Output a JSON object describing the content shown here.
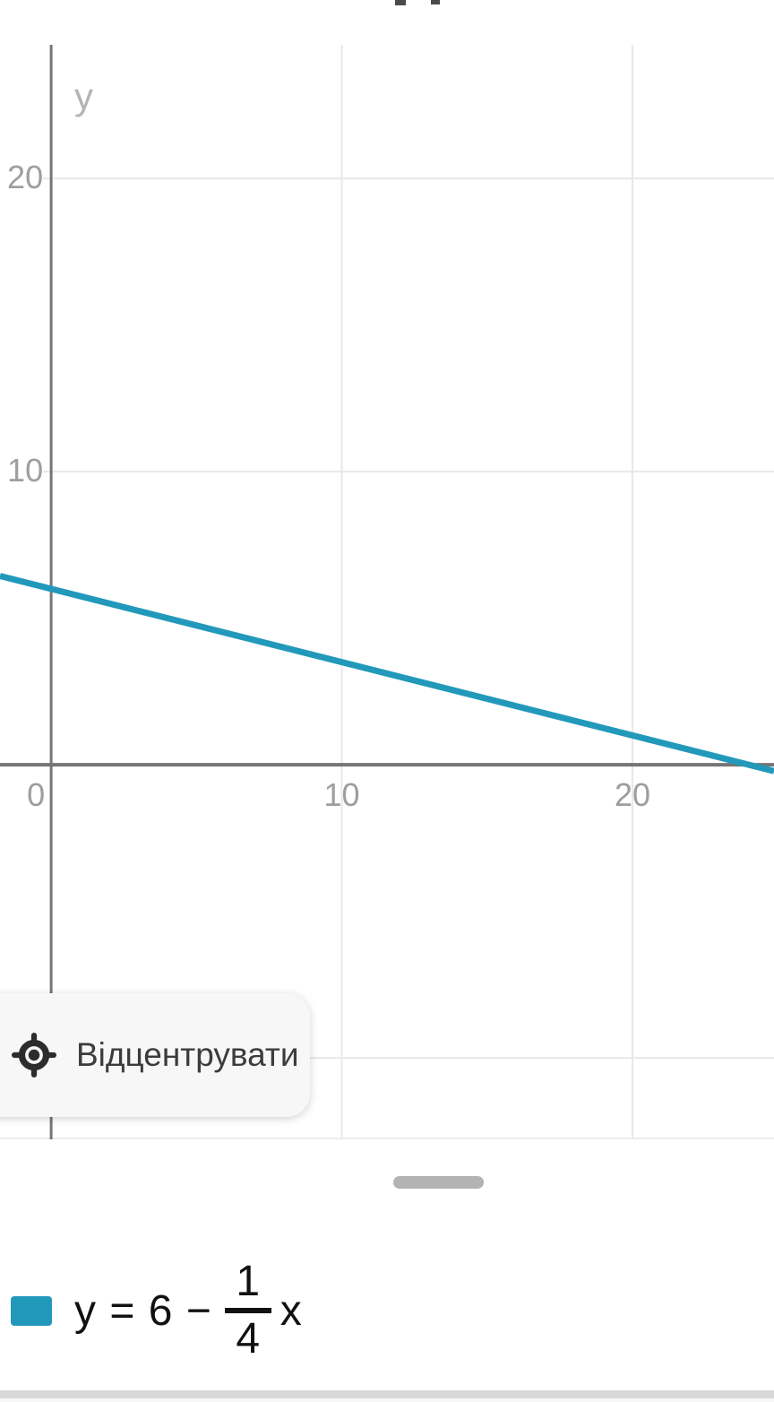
{
  "chart_data": {
    "type": "line",
    "title": "",
    "xlabel": "",
    "ylabel": "y",
    "xlim": [
      -1.76,
      24.87
    ],
    "ylim": [
      -12.78,
      24.56
    ],
    "grid": true,
    "x_ticks": [
      {
        "value": 0,
        "label": "0"
      },
      {
        "value": 10,
        "label": "10"
      },
      {
        "value": 20,
        "label": "20"
      }
    ],
    "y_ticks": [
      {
        "value": -10,
        "label": ""
      },
      {
        "value": 10,
        "label": "10"
      },
      {
        "value": 20,
        "label": "20"
      }
    ],
    "series": [
      {
        "name": "y = 6 − (1/4)x",
        "slope": -0.25,
        "y_intercept": 6,
        "x_intercept": 24,
        "color": "#2299bb",
        "sample_points": [
          [
            0,
            6
          ],
          [
            10,
            3.5
          ],
          [
            20,
            1
          ],
          [
            24,
            0
          ]
        ]
      }
    ],
    "legend_position": "bottom"
  },
  "colors": {
    "axis": "#757575",
    "grid": "#e8e8e8",
    "plot_bottom_border": "#ececec",
    "tick_label": "#9e9e9e",
    "axis_title": "#b4b4b4",
    "line": "#2299bb",
    "divider": "#d8d8d8"
  },
  "recenter_button": {
    "label": "Відцентрувати",
    "icon": "crosshair-locate"
  },
  "drag_handle": {
    "icon": "horizontal-grab-bar"
  },
  "legend": {
    "swatch_color": "#2299bb",
    "prefix": "y = 6 −",
    "fraction": {
      "numerator": "1",
      "denominator": "4"
    },
    "suffix": "x"
  }
}
